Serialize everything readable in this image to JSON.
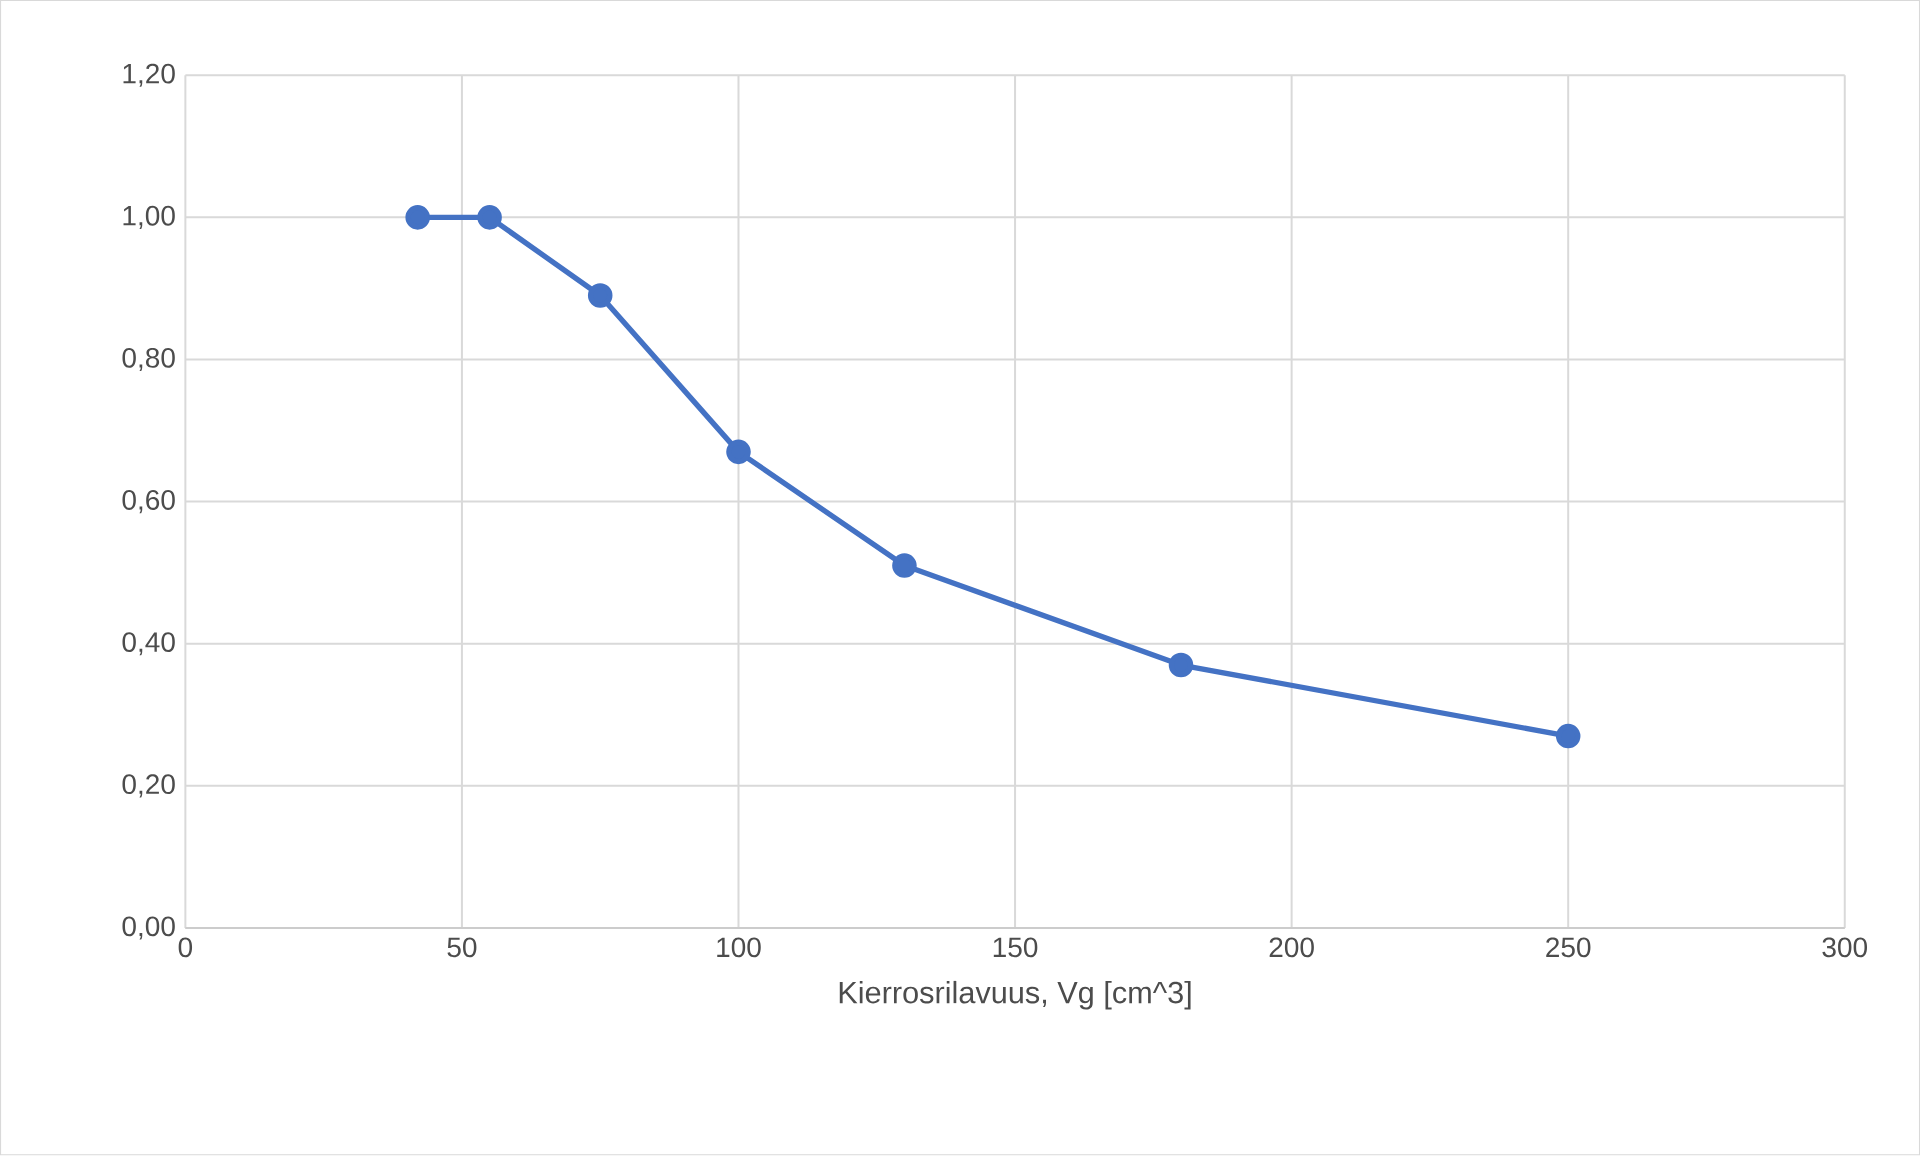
{
  "chart_data": {
    "type": "line",
    "xlabel": "Kierrosrilavuus, Vg [cm^3]",
    "x": [
      42,
      55,
      75,
      100,
      130,
      180,
      250
    ],
    "values": [
      1.0,
      1.0,
      0.89,
      0.67,
      0.51,
      0.37,
      0.27
    ],
    "color": "#4472c4",
    "marker": "circle",
    "line_style": "solid",
    "grid": true,
    "xlim": [
      0,
      300
    ],
    "xticks": [
      0,
      50,
      100,
      150,
      200,
      250,
      300
    ],
    "ylim": [
      0,
      1.2
    ],
    "yticks": [
      {
        "value": 0,
        "label": "0,00"
      },
      {
        "value": 0.2,
        "label": "0,20"
      },
      {
        "value": 0.4,
        "label": "0,40"
      },
      {
        "value": 0.6,
        "label": "0,60"
      },
      {
        "value": 0.8,
        "label": "0,80"
      },
      {
        "value": 1.0,
        "label": "1,00"
      },
      {
        "value": 1.2,
        "label": "1,20"
      }
    ]
  }
}
